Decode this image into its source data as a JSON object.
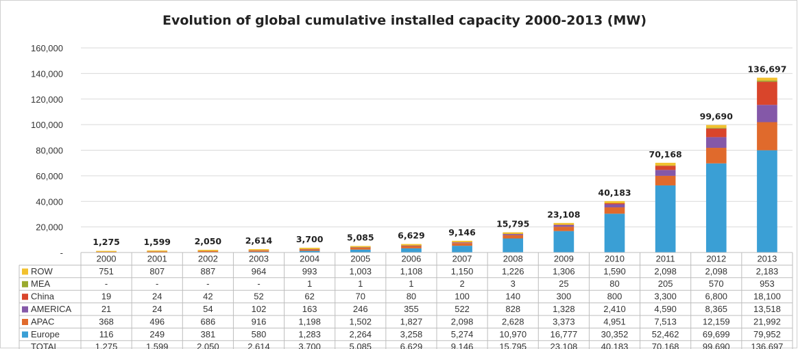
{
  "chart_data": {
    "type": "bar",
    "stacked": true,
    "title": "Evolution of global cumulative installed capacity 2000-2013 (MW)",
    "ylim": [
      0,
      160000
    ],
    "yticks": [
      "-",
      "20,000",
      "40,000",
      "60,000",
      "80,000",
      "100,000",
      "120,000",
      "140,000",
      "160,000"
    ],
    "grid": true,
    "categories": [
      "2000",
      "2001",
      "2002",
      "2003",
      "2004",
      "2005",
      "2006",
      "2007",
      "2008",
      "2009",
      "2010",
      "2011",
      "2012",
      "2013"
    ],
    "series": [
      {
        "name": "ROW",
        "color": "#F2C12E",
        "values": [
          751,
          807,
          887,
          964,
          993,
          1003,
          1108,
          1150,
          1226,
          1306,
          1590,
          2098,
          2098,
          2183
        ],
        "labels": [
          "751",
          "807",
          "887",
          "964",
          "993",
          "1,003",
          "1,108",
          "1,150",
          "1,226",
          "1,306",
          "1,590",
          "2,098",
          "2,098",
          "2,183"
        ]
      },
      {
        "name": "MEA",
        "color": "#9AAA2E",
        "values": [
          0,
          0,
          0,
          0,
          1,
          1,
          1,
          2,
          3,
          25,
          80,
          205,
          570,
          953
        ],
        "labels": [
          "-",
          "-",
          "-",
          "-",
          "1",
          "1",
          "1",
          "2",
          "3",
          "25",
          "80",
          "205",
          "570",
          "953"
        ]
      },
      {
        "name": "China",
        "color": "#D9452B",
        "values": [
          19,
          24,
          42,
          52,
          62,
          70,
          80,
          100,
          140,
          300,
          800,
          3300,
          6800,
          18100
        ],
        "labels": [
          "19",
          "24",
          "42",
          "52",
          "62",
          "70",
          "80",
          "100",
          "140",
          "300",
          "800",
          "3,300",
          "6,800",
          "18,100"
        ]
      },
      {
        "name": "AMERICA",
        "color": "#8458A8",
        "values": [
          21,
          24,
          54,
          102,
          163,
          246,
          355,
          522,
          828,
          1328,
          2410,
          4590,
          8365,
          13518
        ],
        "labels": [
          "21",
          "24",
          "54",
          "102",
          "163",
          "246",
          "355",
          "522",
          "828",
          "1,328",
          "2,410",
          "4,590",
          "8,365",
          "13,518"
        ]
      },
      {
        "name": "APAC",
        "color": "#E06A2C",
        "values": [
          368,
          496,
          686,
          916,
          1198,
          1502,
          1827,
          2098,
          2628,
          3373,
          4951,
          7513,
          12159,
          21992
        ],
        "labels": [
          "368",
          "496",
          "686",
          "916",
          "1,198",
          "1,502",
          "1,827",
          "2,098",
          "2,628",
          "3,373",
          "4,951",
          "7,513",
          "12,159",
          "21,992"
        ]
      },
      {
        "name": "Europe",
        "color": "#3A9FD5",
        "values": [
          116,
          249,
          381,
          580,
          1283,
          2264,
          3258,
          5274,
          10970,
          16777,
          30352,
          52462,
          69699,
          79952
        ],
        "labels": [
          "116",
          "249",
          "381",
          "580",
          "1,283",
          "2,264",
          "3,258",
          "5,274",
          "10,970",
          "16,777",
          "30,352",
          "52,462",
          "69,699",
          "79,952"
        ]
      }
    ],
    "total": {
      "name": "TOTAL",
      "values": [
        1275,
        1599,
        2050,
        2614,
        3700,
        5085,
        6629,
        9146,
        15795,
        23108,
        40183,
        70168,
        99690,
        136697
      ],
      "labels": [
        "1,275",
        "1,599",
        "2,050",
        "2,614",
        "3,700",
        "5,085",
        "6,629",
        "9,146",
        "15,795",
        "23,108",
        "40,183",
        "70,168",
        "99,690",
        "136,697"
      ]
    }
  }
}
